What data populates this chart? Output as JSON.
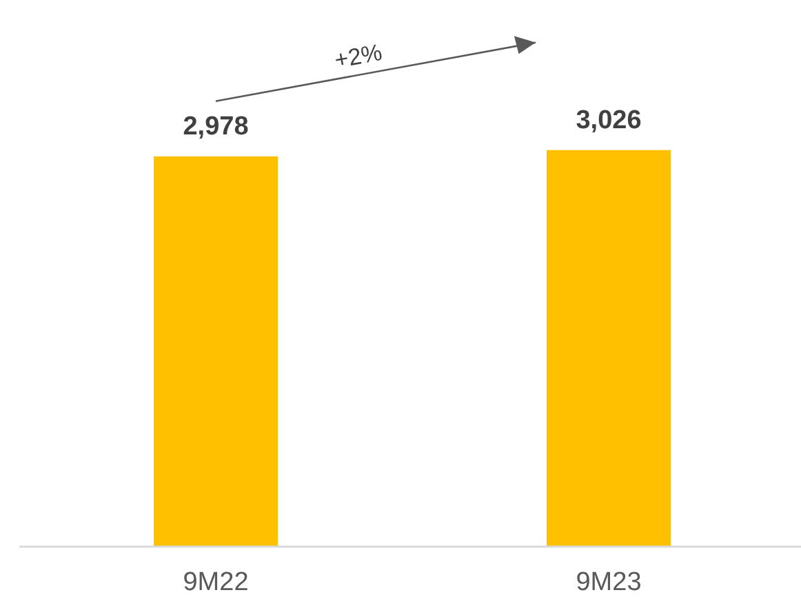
{
  "chart_data": {
    "type": "bar",
    "categories": [
      "9M22",
      "9M23"
    ],
    "values": [
      2978,
      3026
    ],
    "color": "#ffc000",
    "value_labels": [
      "2,978",
      "3,026"
    ],
    "tick_labels": "x",
    "annotations": [
      "+2%"
    ]
  }
}
